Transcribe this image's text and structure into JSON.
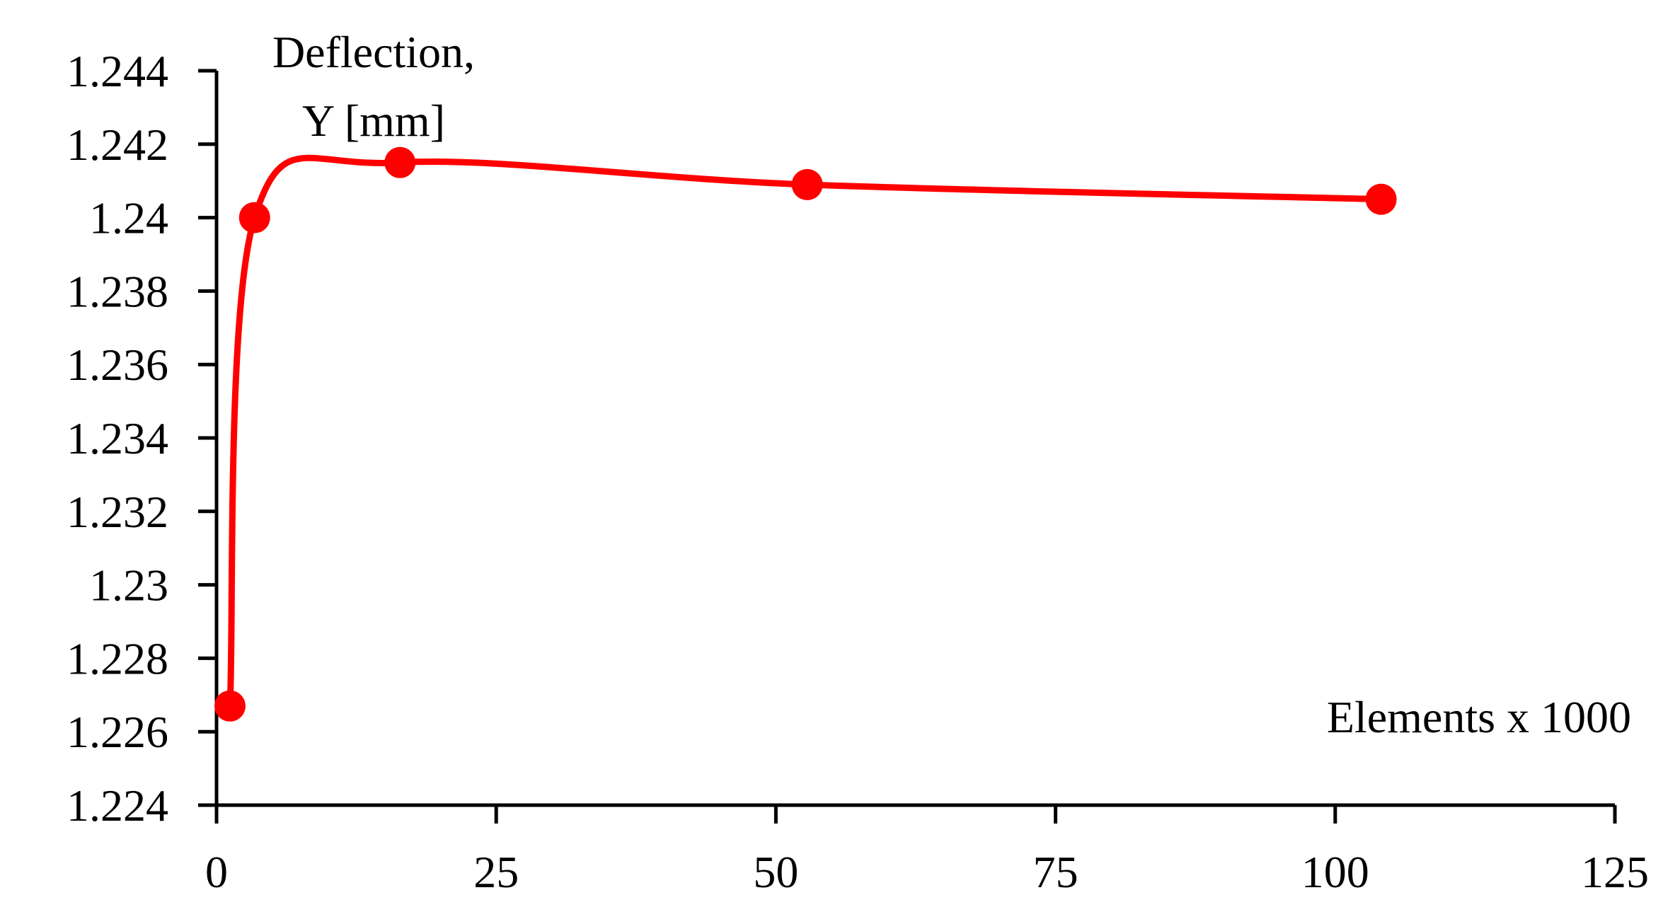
{
  "chart_data": {
    "type": "line",
    "smooth": true,
    "ylabel_lines": [
      "Deflection,",
      "Y [mm]"
    ],
    "xlabel": "Elements x 1000",
    "xlim": [
      0,
      125
    ],
    "ylim": [
      1.224,
      1.244
    ],
    "x_ticks": [
      "0",
      "25",
      "50",
      "75",
      "100",
      "125"
    ],
    "y_ticks": [
      "1.224",
      "1.226",
      "1.228",
      "1.23",
      "1.232",
      "1.234",
      "1.236",
      "1.238",
      "1.24",
      "1.242",
      "1.244"
    ],
    "grid": false,
    "legend": "none",
    "series": [
      {
        "color": "#ff0000",
        "marker": "circle",
        "x": [
          1.2,
          3.4,
          16.4,
          52.8,
          104.1
        ],
        "y": [
          1.2267,
          1.24,
          1.2415,
          1.2409,
          1.2405
        ]
      }
    ]
  }
}
